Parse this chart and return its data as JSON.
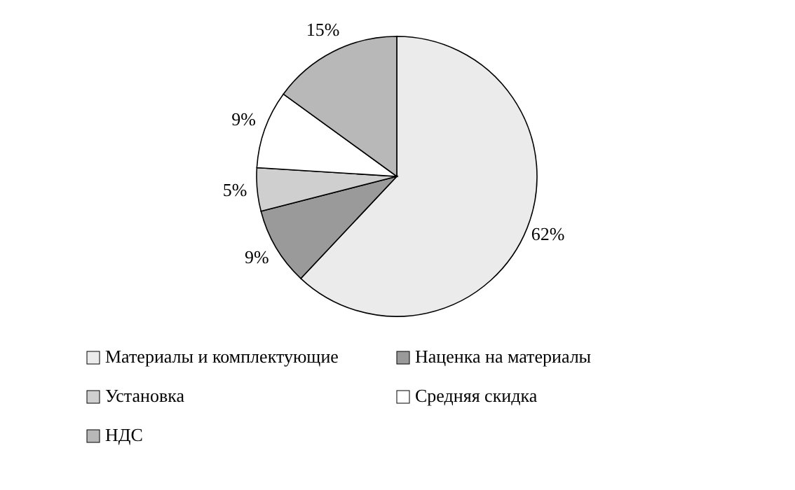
{
  "chart_data": {
    "type": "pie",
    "categories": [
      "Материалы и комплектующие",
      "Наценка на материалы",
      "Установка",
      "Средняя скидка",
      "НДС"
    ],
    "values": [
      62,
      9,
      5,
      9,
      15
    ],
    "colors": [
      "#ebebeb",
      "#9a9a9a",
      "#cfcfcf",
      "#ffffff",
      "#b8b8b8"
    ],
    "value_labels": [
      "62%",
      "9%",
      "5%",
      "9%",
      "15%"
    ],
    "legend": "bottom"
  }
}
